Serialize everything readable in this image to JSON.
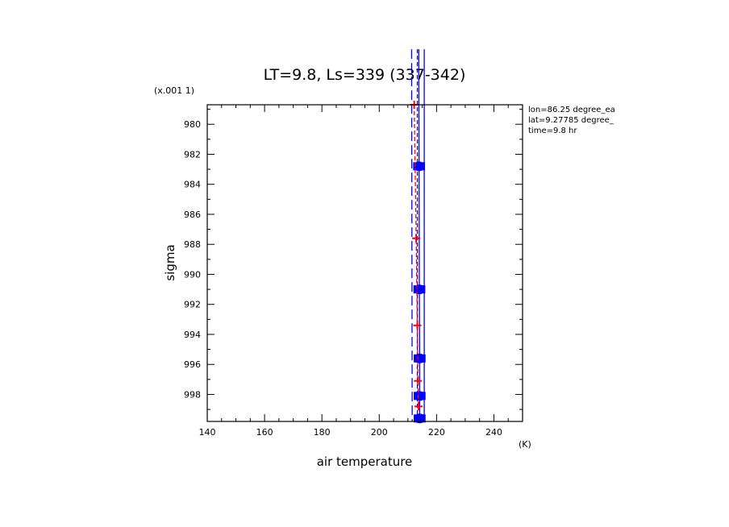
{
  "chart_data": {
    "type": "line",
    "title": "LT=9.8, Ls=339 (337-342)",
    "xlabel": "air temperature",
    "ylabel": "sigma",
    "x_unit": "(K)",
    "y_scale_note": "(x.001 1)",
    "xlim": [
      140,
      250
    ],
    "ylim": [
      978.7,
      999.8
    ],
    "y_inverted": true,
    "x_ticks": [
      140,
      160,
      180,
      200,
      220,
      240
    ],
    "y_ticks": [
      980,
      982,
      984,
      986,
      988,
      990,
      992,
      994,
      996,
      998
    ],
    "info_lines": [
      "lon=86.25 degree_ea",
      "lat=9.27785 degree_",
      "time=9.8 hr"
    ],
    "series": [
      {
        "color": "#0000ff",
        "style": "solid",
        "markers": "bars",
        "points": [
          [
            213.8,
            975
          ],
          [
            213.9,
            982.8
          ],
          [
            214.0,
            991.0
          ],
          [
            214.1,
            995.6
          ],
          [
            214.1,
            998.1
          ],
          [
            214.1,
            999.6
          ]
        ],
        "errors": [
          1.5,
          1.5,
          1.5,
          1.5,
          1.5,
          1.5
        ]
      },
      {
        "color": "#0000ff",
        "style": "solid",
        "markers": "none",
        "points": [
          [
            215.7,
            975
          ],
          [
            215.7,
            999.8
          ]
        ]
      },
      {
        "color": "#0000ff",
        "style": "dashed",
        "markers": "none",
        "points": [
          [
            213.3,
            975
          ],
          [
            213.3,
            999.8
          ]
        ]
      },
      {
        "color": "#0000ff",
        "style": "long-dashed",
        "markers": "none",
        "points": [
          [
            211.3,
            975
          ],
          [
            211.5,
            999.8
          ]
        ]
      },
      {
        "color": "#ff0000",
        "style": "dashed",
        "markers": "cross",
        "points": [
          [
            212.2,
            978.7
          ],
          [
            212.9,
            987.6
          ],
          [
            213.3,
            993.4
          ],
          [
            213.5,
            997.1
          ],
          [
            213.7,
            998.8
          ]
        ]
      }
    ]
  }
}
